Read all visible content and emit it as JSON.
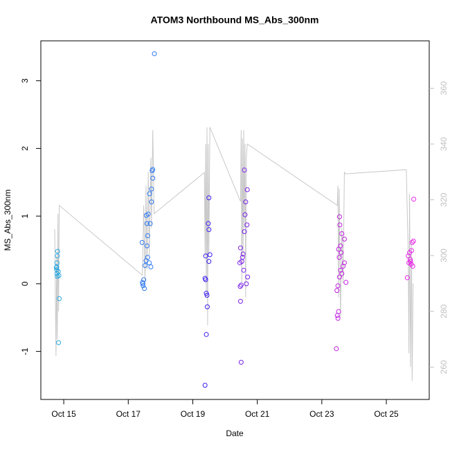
{
  "chart_data": {
    "type": "scatter",
    "title": "ATOM3 Northbound MS_Abs_300nm",
    "x_label": "Date",
    "y_label": "MS_Abs_300nm",
    "xlim": [
      14.29,
      26.33
    ],
    "xticks": [
      {
        "value": 15,
        "label": "Oct 15"
      },
      {
        "value": 17,
        "label": "Oct 17"
      },
      {
        "value": 19,
        "label": "Oct 19"
      },
      {
        "value": 21,
        "label": "Oct 21"
      },
      {
        "value": 23,
        "label": "Oct 23"
      },
      {
        "value": 25,
        "label": "Oct 25"
      }
    ],
    "ylim": [
      -1.71,
      3.59
    ],
    "yticks": [
      -1,
      0,
      1,
      2,
      3
    ],
    "y2lim": [
      248.4,
      377
    ],
    "y2ticks": [
      260,
      280,
      300,
      320,
      340,
      360
    ],
    "series": [
      {
        "type": "line",
        "axis": "y2",
        "color": "#c8c8c8",
        "x": [
          14.72,
          14.74,
          14.76,
          14.78,
          14.8,
          14.82,
          14.84,
          14.86,
          17.43,
          17.45,
          17.48,
          17.52,
          17.55,
          17.58,
          17.62,
          17.65,
          17.7,
          17.72,
          17.76,
          17.78,
          17.8,
          19.36,
          19.38,
          19.4,
          19.42,
          19.44,
          19.46,
          19.48,
          19.5,
          19.53,
          20.48,
          20.5,
          20.52,
          20.54,
          20.56,
          20.58,
          20.6,
          20.62,
          20.64,
          20.66,
          20.69,
          23.48,
          23.5,
          23.52,
          23.54,
          23.58,
          23.62,
          23.66,
          23.7,
          23.73,
          25.62,
          25.65,
          25.68,
          25.7,
          25.72,
          25.75,
          25.78,
          25.8,
          25.83
        ],
        "values": [
          309.5,
          285,
          264,
          300,
          270,
          315,
          280,
          318,
          293,
          300,
          318,
          290,
          325,
          295,
          330,
          300,
          335,
          310,
          345,
          330,
          315,
          329.8,
          300,
          340,
          285,
          346,
          275,
          340,
          300,
          346,
          319.4,
          345,
          290,
          342,
          300,
          345,
          310,
          340,
          285,
          335,
          340,
          318,
          325,
          285,
          324,
          278,
          310,
          290,
          330,
          329.3,
          330.8,
          315,
          300,
          265,
          322,
          260,
          305,
          255,
          290
        ]
      },
      {
        "type": "scatter",
        "color": "#29a8e0",
        "x": [
          14.78,
          14.79,
          14.8,
          14.78,
          14.79,
          14.8,
          14.81,
          14.83,
          14.85,
          14.86,
          14.84,
          14.77
        ],
        "values": [
          0.21,
          0.15,
          0.11,
          0.25,
          0.31,
          0.41,
          0.48,
          0.18,
          0.12,
          -0.22,
          -0.87,
          0.24
        ]
      },
      {
        "type": "scatter",
        "color": "#2d78f0",
        "x": [
          17.43,
          17.44,
          17.45,
          17.46,
          17.5,
          17.48,
          17.52,
          17.55,
          17.6,
          17.58,
          17.6,
          17.58,
          17.56,
          17.62,
          17.72,
          17.66,
          17.72,
          17.76,
          17.74,
          17.76,
          17.81,
          17.68,
          17.65,
          17.7
        ],
        "values": [
          0.61,
          0.02,
          0,
          -0.03,
          -0.07,
          0.06,
          0.27,
          0.34,
          0.39,
          0.56,
          0.71,
          0.89,
          1.01,
          1.03,
          1.21,
          1.33,
          1.4,
          1.56,
          1.67,
          1.69,
          3.4,
          0.89,
          0.31,
          0.25
        ]
      },
      {
        "type": "scatter",
        "color": "#3a1ef0",
        "x": [
          19.38,
          19.42,
          19.45,
          19.44,
          19.42,
          19.4,
          19.38,
          19.4,
          19.5,
          19.53,
          19.5,
          19.48,
          19.5
        ],
        "values": [
          -1.5,
          -0.75,
          -0.34,
          -0.17,
          -0.14,
          0.06,
          0.08,
          0.41,
          0.33,
          0.43,
          0.8,
          0.89,
          1.27
        ]
      },
      {
        "type": "scatter",
        "color": "#7a20e8",
        "x": [
          20.5,
          20.48,
          20.47,
          20.5,
          20.46,
          20.52,
          20.54,
          20.56,
          20.48,
          20.6,
          20.68,
          20.62,
          20.64,
          20.69,
          20.6,
          20.7,
          20.66,
          20.58
        ],
        "values": [
          -1.16,
          -0.26,
          -0.04,
          -0.02,
          0.31,
          0.33,
          0.39,
          0.44,
          0.53,
          0.77,
          0.87,
          1.02,
          1.21,
          1.39,
          1.68,
          0.1,
          0,
          0.2
        ]
      },
      {
        "type": "scatter",
        "color": "#c020e0",
        "x": [
          23.45,
          23.5,
          23.48,
          23.52,
          23.47,
          23.5,
          23.55,
          23.62,
          23.58,
          23.66,
          23.7,
          23.54,
          23.6,
          23.52,
          23.58,
          23.7,
          23.62,
          23.56,
          23.55,
          23.75
        ],
        "values": [
          -0.96,
          -0.51,
          -0.47,
          -0.41,
          -0.1,
          -0.03,
          0.1,
          0.15,
          0.2,
          0.26,
          0.31,
          0.39,
          0.46,
          0.51,
          0.56,
          0.66,
          0.74,
          0.87,
          0.99,
          0.02
        ]
      },
      {
        "type": "scatter",
        "color": "#e81ee8",
        "x": [
          25.65,
          25.7,
          25.74,
          25.68,
          25.72,
          25.78,
          25.82,
          25.75,
          25.84,
          25.85,
          25.8,
          25.77
        ],
        "values": [
          0.09,
          0.31,
          0.36,
          0.41,
          0.46,
          0.49,
          0.26,
          0.33,
          0.63,
          1.25,
          0.61,
          0.29
        ]
      }
    ]
  }
}
